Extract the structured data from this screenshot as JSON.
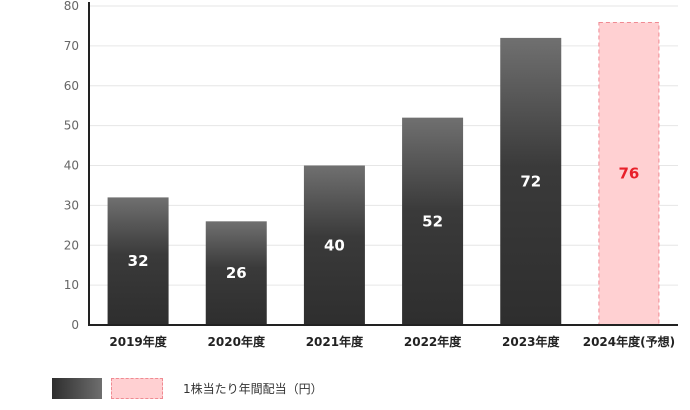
{
  "chart_data": {
    "type": "bar",
    "categories": [
      "2019年度",
      "2020年度",
      "2021年度",
      "2022年度",
      "2023年度",
      "2024年度(予想)"
    ],
    "values": [
      32,
      26,
      40,
      52,
      72,
      76
    ],
    "forecast": [
      false,
      false,
      false,
      false,
      false,
      true
    ],
    "ylim": [
      0,
      80
    ],
    "yticks": [
      0,
      10,
      20,
      30,
      40,
      50,
      60,
      70,
      80
    ],
    "grid": true,
    "title": "",
    "xlabel": "",
    "ylabel": "",
    "legend_position": "bottom-left",
    "colors": {
      "actual_top": "#707070",
      "actual_bottom": "#2e2e2e",
      "actual_label": "#ffffff",
      "forecast_fill": "#ffd0d2",
      "forecast_border": "#f08a92",
      "forecast_label": "#e8202a",
      "grid": "#e6e6e6",
      "axis": "#222222"
    }
  },
  "legend": {
    "label": "1株当たり年間配当（円）"
  }
}
